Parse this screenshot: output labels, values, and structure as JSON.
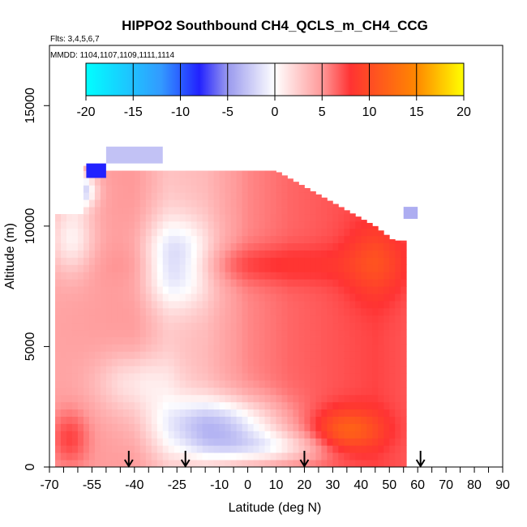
{
  "chart_data": {
    "type": "heatmap",
    "title": "HIPPO2 Southbound CH4_QCLS_m_CH4_CCG",
    "flights_note": "Flts: 3,4,5,6,7",
    "dates_note": "MMDD: 1104,1107,1109,1111,1114",
    "xlabel": "Latitude (deg N)",
    "ylabel": "Altitude (m)",
    "xlim": [
      -70,
      90
    ],
    "ylim": [
      0,
      17500
    ],
    "x_ticks": [
      -70,
      -55,
      -40,
      -25,
      -10,
      0,
      10,
      20,
      30,
      40,
      50,
      60,
      70,
      80,
      90
    ],
    "x_tick_labels": [
      "-70",
      "-55",
      "-40",
      "-25",
      "-10",
      "0",
      "10",
      "20",
      "30",
      "40",
      "50",
      "60",
      "70",
      "80",
      "90"
    ],
    "x_minor_ticks": [
      -65,
      -60,
      -50,
      -45,
      -35,
      -30,
      -20,
      -15,
      -5,
      5,
      15,
      25,
      35,
      45,
      55,
      65,
      75,
      85
    ],
    "y_ticks": [
      0,
      5000,
      10000,
      15000
    ],
    "y_tick_labels": [
      "0",
      "5000",
      "10000",
      "15000"
    ],
    "colorbar": {
      "range": [
        -20,
        20
      ],
      "ticks": [
        -20,
        -15,
        -10,
        -5,
        0,
        5,
        10,
        15,
        20
      ],
      "tick_labels": [
        "-20",
        "-15",
        "-10",
        "-5",
        "0",
        "5",
        "10",
        "15",
        "20"
      ],
      "stops": [
        {
          "value": -20,
          "color": "#00ffff"
        },
        {
          "value": -12,
          "color": "#3399ff"
        },
        {
          "value": -8,
          "color": "#2222ff"
        },
        {
          "value": -5,
          "color": "#9999ee"
        },
        {
          "value": 0,
          "color": "#ffffff"
        },
        {
          "value": 5,
          "color": "#ff9999"
        },
        {
          "value": 8,
          "color": "#ff3333"
        },
        {
          "value": 15,
          "color": "#ff8800"
        },
        {
          "value": 20,
          "color": "#ffff00"
        }
      ]
    },
    "arrows_latitudes": [
      -42,
      -22,
      20,
      61
    ],
    "field": {
      "lat_range": [
        -68,
        56
      ],
      "alt_range": [
        0,
        12300
      ],
      "base_lat": [
        -68,
        -40,
        -28,
        -15,
        0,
        15,
        30,
        45,
        56
      ],
      "base_value": [
        4.5,
        5,
        3,
        3.5,
        5.5,
        6.5,
        7,
        7.5,
        7
      ],
      "features": [
        {
          "lat": -25,
          "alt": 8500,
          "sig_lat": 12,
          "sig_alt": 1700,
          "amp": -6
        },
        {
          "lat": -40,
          "alt": 3500,
          "sig_lat": 14,
          "sig_alt": 1300,
          "amp": -3.5
        },
        {
          "lat": -10,
          "alt": 1800,
          "sig_lat": 22,
          "sig_alt": 1100,
          "amp": -7
        },
        {
          "lat": 5,
          "alt": 800,
          "sig_lat": 25,
          "sig_alt": 700,
          "amp": -5
        },
        {
          "lat": -62,
          "alt": 9500,
          "sig_lat": 8,
          "sig_alt": 1500,
          "amp": -4
        },
        {
          "lat": -60,
          "alt": 11500,
          "sig_lat": 6,
          "sig_alt": 700,
          "amp": -8
        },
        {
          "lat": -63,
          "alt": 1200,
          "sig_lat": 7,
          "sig_alt": 1200,
          "amp": 3
        },
        {
          "lat": 0,
          "alt": 8400,
          "sig_lat": 40,
          "sig_alt": 800,
          "amp": 2
        },
        {
          "lat": 35,
          "alt": 1500,
          "sig_lat": 12,
          "sig_alt": 900,
          "amp": 5
        },
        {
          "lat": 45,
          "alt": 8500,
          "sig_lat": 10,
          "sig_alt": 1500,
          "amp": 2.5
        }
      ],
      "extras": [
        {
          "lat": [
            -57,
            -50
          ],
          "alt": [
            12000,
            12600
          ],
          "value": -8
        },
        {
          "lat": [
            -50,
            -30
          ],
          "alt": [
            12600,
            13300
          ],
          "value": -3
        },
        {
          "lat": [
            55,
            60
          ],
          "alt": [
            10300,
            10800
          ],
          "value": -4
        }
      ]
    }
  }
}
